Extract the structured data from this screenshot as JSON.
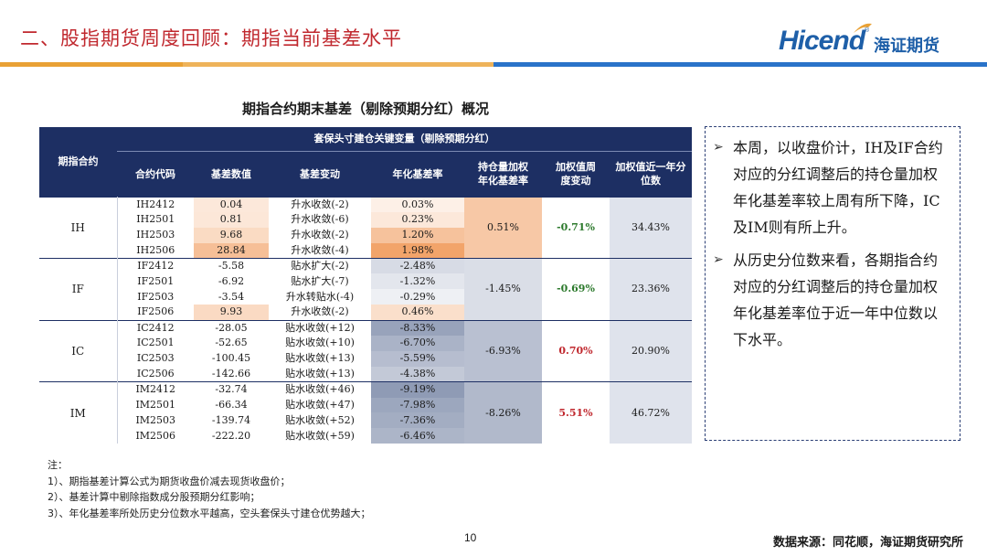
{
  "header": {
    "title": "二、股指期货周度回顾：期指当前基差水平"
  },
  "logo": {
    "word": "Hicend",
    "reg": "®",
    "cn": "海证期货"
  },
  "table": {
    "title": "期指合约期末基差（剔除预期分红）概况",
    "col_product": "期指合约",
    "group_header": "套保头寸建仓关键变量（剔除预期分红）",
    "columns": [
      "合约代码",
      "基差数值",
      "基差变动",
      "年化基差率",
      "持仓量加权年化基差率",
      "加权值周度变动",
      "加权值近一年分位数"
    ],
    "colors": {
      "header_bg": "#1d2f63",
      "positive_orange": "#f2a46a",
      "negative_blue": "#8f9bb5",
      "percentile_bg": "#dfe3ec",
      "green_text": "#2d7a2d",
      "red_text": "#c0282e"
    },
    "groups": [
      {
        "name": "IH",
        "weighted": "0.51%",
        "weighted_change": "-0.71%",
        "change_color": "green",
        "percentile": "34.43%",
        "rows": [
          {
            "code": "IH2412",
            "basis": "0.04",
            "change": "升水收敛(-2)",
            "annual": "0.03%"
          },
          {
            "code": "IH2501",
            "basis": "0.81",
            "change": "升水收敛(-6)",
            "annual": "0.23%"
          },
          {
            "code": "IH2503",
            "basis": "9.68",
            "change": "升水收敛(-2)",
            "annual": "1.20%"
          },
          {
            "code": "IH2506",
            "basis": "28.84",
            "change": "升水收敛(-4)",
            "annual": "1.98%"
          }
        ]
      },
      {
        "name": "IF",
        "weighted": "-1.45%",
        "weighted_change": "-0.69%",
        "change_color": "green",
        "percentile": "23.36%",
        "rows": [
          {
            "code": "IF2412",
            "basis": "-5.58",
            "change": "贴水扩大(-2)",
            "annual": "-2.48%"
          },
          {
            "code": "IF2501",
            "basis": "-6.92",
            "change": "贴水扩大(-7)",
            "annual": "-1.32%"
          },
          {
            "code": "IF2503",
            "basis": "-3.54",
            "change": "升水转贴水(-4)",
            "annual": "-0.29%"
          },
          {
            "code": "IF2506",
            "basis": "9.93",
            "change": "升水收敛(-2)",
            "annual": "0.46%"
          }
        ]
      },
      {
        "name": "IC",
        "weighted": "-6.93%",
        "weighted_change": "0.70%",
        "change_color": "red",
        "percentile": "20.90%",
        "rows": [
          {
            "code": "IC2412",
            "basis": "-28.05",
            "change": "贴水收敛(+12)",
            "annual": "-8.33%"
          },
          {
            "code": "IC2501",
            "basis": "-52.65",
            "change": "贴水收敛(+10)",
            "annual": "-6.70%"
          },
          {
            "code": "IC2503",
            "basis": "-100.45",
            "change": "贴水收敛(+13)",
            "annual": "-5.59%"
          },
          {
            "code": "IC2506",
            "basis": "-142.66",
            "change": "贴水收敛(+13)",
            "annual": "-4.38%"
          }
        ]
      },
      {
        "name": "IM",
        "weighted": "-8.26%",
        "weighted_change": "5.51%",
        "change_color": "red",
        "percentile": "46.72%",
        "rows": [
          {
            "code": "IM2412",
            "basis": "-32.74",
            "change": "贴水收敛(+46)",
            "annual": "-9.19%"
          },
          {
            "code": "IM2501",
            "basis": "-66.34",
            "change": "贴水收敛(+47)",
            "annual": "-7.98%"
          },
          {
            "code": "IM2503",
            "basis": "-139.74",
            "change": "贴水收敛(+52)",
            "annual": "-7.36%"
          },
          {
            "code": "IM2506",
            "basis": "-222.20",
            "change": "贴水收敛(+59)",
            "annual": "-6.46%"
          }
        ]
      }
    ]
  },
  "commentary": {
    "bullets": [
      "本周，以收盘价计，IH及IF合约对应的分红调整后的持仓量加权年化基差率较上周有所下降，IC及IM则有所上升。",
      "从历史分位数来看，各期指合约对应的分红调整后的持仓量加权年化基差率位于近一年中位数以下水平。"
    ]
  },
  "footnotes": {
    "label": "注：",
    "items": [
      "1）、期指基差计算公式为期货收盘价减去现货收盘价；",
      "2）、基差计算中剔除指数成分股预期分红影响；",
      "3）、年化基差率所处历史分位数水平越高，空头套保头寸建仓优势越大；"
    ]
  },
  "page_number": "10",
  "source": "数据来源：同花顺，海证期货研究所"
}
